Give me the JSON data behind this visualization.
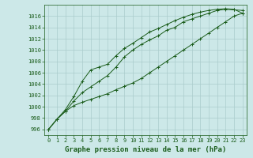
{
  "title": "Graphe pression niveau de la mer (hPa)",
  "title_fontsize": 6.5,
  "bg_color": "#cce8e8",
  "grid_color": "#aacccc",
  "line_color": "#1a5c1a",
  "x": [
    0,
    1,
    2,
    3,
    4,
    5,
    6,
    7,
    8,
    9,
    10,
    11,
    12,
    13,
    14,
    15,
    16,
    17,
    18,
    19,
    20,
    21,
    22,
    23
  ],
  "line1": [
    996,
    997.8,
    999.2,
    1000.2,
    1000.8,
    1001.3,
    1001.8,
    1002.3,
    1003.0,
    1003.6,
    1004.2,
    1005.0,
    1006.0,
    1007.0,
    1008.0,
    1009.0,
    1010.0,
    1011.0,
    1012.0,
    1013.0,
    1014.0,
    1015.0,
    1016.0,
    1016.5
  ],
  "line2": [
    996,
    997.8,
    999.2,
    1001.0,
    1002.5,
    1003.5,
    1004.5,
    1005.5,
    1007.0,
    1008.8,
    1010.0,
    1011.0,
    1011.8,
    1012.5,
    1013.5,
    1014.0,
    1015.0,
    1015.5,
    1016.0,
    1016.5,
    1017.0,
    1017.2,
    1017.1,
    1017.0
  ],
  "line3": [
    996,
    997.8,
    999.5,
    1001.8,
    1004.5,
    1006.5,
    1007.0,
    1007.5,
    1009.0,
    1010.3,
    1011.2,
    1012.2,
    1013.2,
    1013.8,
    1014.5,
    1015.2,
    1015.8,
    1016.3,
    1016.7,
    1017.0,
    1017.2,
    1017.3,
    1017.2,
    1016.5
  ],
  "ylim": [
    995,
    1018
  ],
  "yticks": [
    996,
    998,
    1000,
    1002,
    1004,
    1006,
    1008,
    1010,
    1012,
    1014,
    1016
  ],
  "tick_fontsize": 5.0,
  "markersize": 2.0,
  "linewidth": 0.7
}
